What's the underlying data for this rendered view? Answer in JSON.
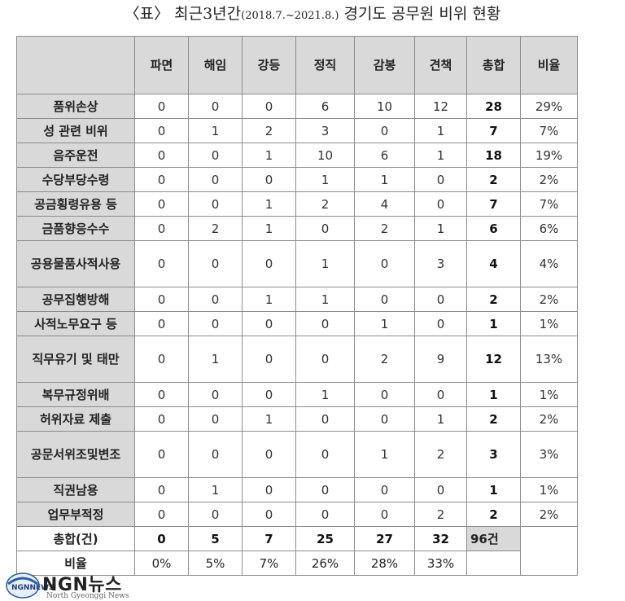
{
  "title": {
    "prefix": "〈표〉 최근3년간",
    "range": "(2018.7.~2021.8.)",
    "suffix": " 경기도 공무원 비위 현황"
  },
  "headers": [
    "",
    "파면",
    "해임",
    "강등",
    "정직",
    "감봉",
    "견책",
    "총합",
    "비율"
  ],
  "rows": [
    {
      "label": "품위손상",
      "values": [
        "0",
        "0",
        "0",
        "6",
        "10",
        "12"
      ],
      "total": "28",
      "ratio": "29%"
    },
    {
      "label": "성 관련 비위",
      "values": [
        "0",
        "1",
        "2",
        "3",
        "0",
        "1"
      ],
      "total": "7",
      "ratio": "7%"
    },
    {
      "label": "음주운전",
      "values": [
        "0",
        "0",
        "1",
        "10",
        "6",
        "1"
      ],
      "total": "18",
      "ratio": "19%"
    },
    {
      "label": "수당부당수령",
      "values": [
        "0",
        "0",
        "0",
        "1",
        "1",
        "0"
      ],
      "total": "2",
      "ratio": "2%"
    },
    {
      "label": "공금횡령유용 등",
      "values": [
        "0",
        "0",
        "1",
        "2",
        "4",
        "0"
      ],
      "total": "7",
      "ratio": "7%"
    },
    {
      "label": "금품향응수수",
      "values": [
        "0",
        "2",
        "1",
        "0",
        "2",
        "1"
      ],
      "total": "6",
      "ratio": "6%"
    },
    {
      "label": "공용물품사적사용",
      "values": [
        "0",
        "0",
        "0",
        "1",
        "0",
        "3"
      ],
      "total": "4",
      "ratio": "4%"
    },
    {
      "label": "공무집행방해",
      "values": [
        "0",
        "0",
        "1",
        "1",
        "0",
        "0"
      ],
      "total": "2",
      "ratio": "2%"
    },
    {
      "label": "사적노무요구 등",
      "values": [
        "0",
        "0",
        "0",
        "0",
        "1",
        "0"
      ],
      "total": "1",
      "ratio": "1%"
    },
    {
      "label": "직무유기 및 태만",
      "values": [
        "0",
        "1",
        "0",
        "0",
        "2",
        "9"
      ],
      "total": "12",
      "ratio": "13%"
    },
    {
      "label": "복무규정위배",
      "values": [
        "0",
        "0",
        "0",
        "1",
        "0",
        "0"
      ],
      "total": "1",
      "ratio": "1%"
    },
    {
      "label": "허위자료 제출",
      "values": [
        "0",
        "0",
        "1",
        "0",
        "0",
        "1"
      ],
      "total": "2",
      "ratio": "2%"
    },
    {
      "label": "공문서위조및변조",
      "values": [
        "0",
        "0",
        "0",
        "0",
        "1",
        "2"
      ],
      "total": "3",
      "ratio": "3%"
    },
    {
      "label": "직권남용",
      "values": [
        "0",
        "1",
        "0",
        "0",
        "0",
        "0"
      ],
      "total": "1",
      "ratio": "1%"
    },
    {
      "label": "업무부적정",
      "values": [
        "0",
        "0",
        "0",
        "0",
        "0",
        "2"
      ],
      "total": "2",
      "ratio": "2%"
    }
  ],
  "total_row": {
    "label": "총합(건)",
    "values": [
      "0",
      "5",
      "7",
      "25",
      "27",
      "32"
    ],
    "grand_total": "96건"
  },
  "ratio_row": {
    "label": "비율",
    "values": [
      "0%",
      "5%",
      "7%",
      "26%",
      "28%",
      "33%"
    ]
  },
  "logo": {
    "name": "NGN뉴스",
    "sub": "North Gyeonggi News",
    "mark": "NGNNEWS"
  }
}
